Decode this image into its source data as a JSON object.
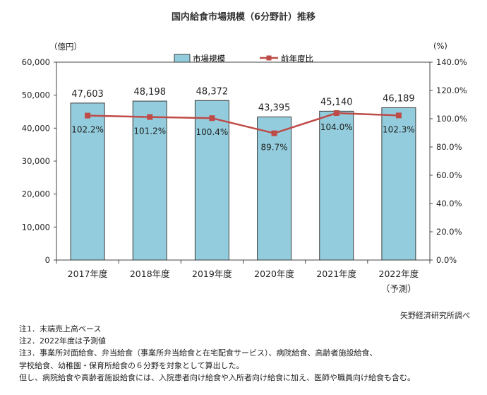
{
  "title": "国内給食市場規模（6分野計）推移",
  "unit_left": "（億円）",
  "unit_right": "(%)",
  "source": "矢野経済研究所調べ",
  "notes": [
    "注1．末端売上高ベース",
    "注2．2022年度は予測値",
    "注3．事業所対面給食、弁当給食（事業所弁当給食と在宅配食サービス）、病院給食、高齢者施設給食、",
    "学校給食、幼稚園・保育所給食の６分野を対象として算出した。",
    "但し、病院給食や高齢者施設給食には、入院患者向け給食や入所者向け給食に加え、医師や職員向け給食も含む。"
  ],
  "colors": {
    "bar_fill": "#93cddd",
    "bar_stroke": "#3b3b3b",
    "line": "#be4b48"
  },
  "chart_data": {
    "type": "bar+line",
    "categories": [
      "2017年度",
      "2018年度",
      "2019年度",
      "2020年度",
      "2021年度",
      "2022年度"
    ],
    "category_sublabels": [
      "",
      "",
      "",
      "",
      "",
      "（予測）"
    ],
    "series": [
      {
        "name": "市場規模",
        "type": "bar",
        "axis": "left",
        "values": [
          47603,
          48198,
          48372,
          43395,
          45140,
          46189
        ],
        "labels": [
          "47,603",
          "48,198",
          "48,372",
          "43,395",
          "45,140",
          "46,189"
        ]
      },
      {
        "name": "前年度比",
        "type": "line",
        "axis": "right",
        "values": [
          102.2,
          101.2,
          100.4,
          89.7,
          104.0,
          102.3
        ],
        "labels": [
          "102.2%",
          "101.2%",
          "100.4%",
          "89.7%",
          "104.0%",
          "102.3%"
        ]
      }
    ],
    "y_left": {
      "lim": [
        0,
        60000
      ],
      "ticks": [
        "0",
        "10,000",
        "20,000",
        "30,000",
        "40,000",
        "50,000",
        "60,000"
      ]
    },
    "y_right": {
      "lim": [
        0,
        140
      ],
      "ticks": [
        "0.0%",
        "20.0%",
        "40.0%",
        "60.0%",
        "80.0%",
        "100.0%",
        "120.0%",
        "140.0%"
      ]
    },
    "grid": false,
    "legend_position": "top-center"
  }
}
